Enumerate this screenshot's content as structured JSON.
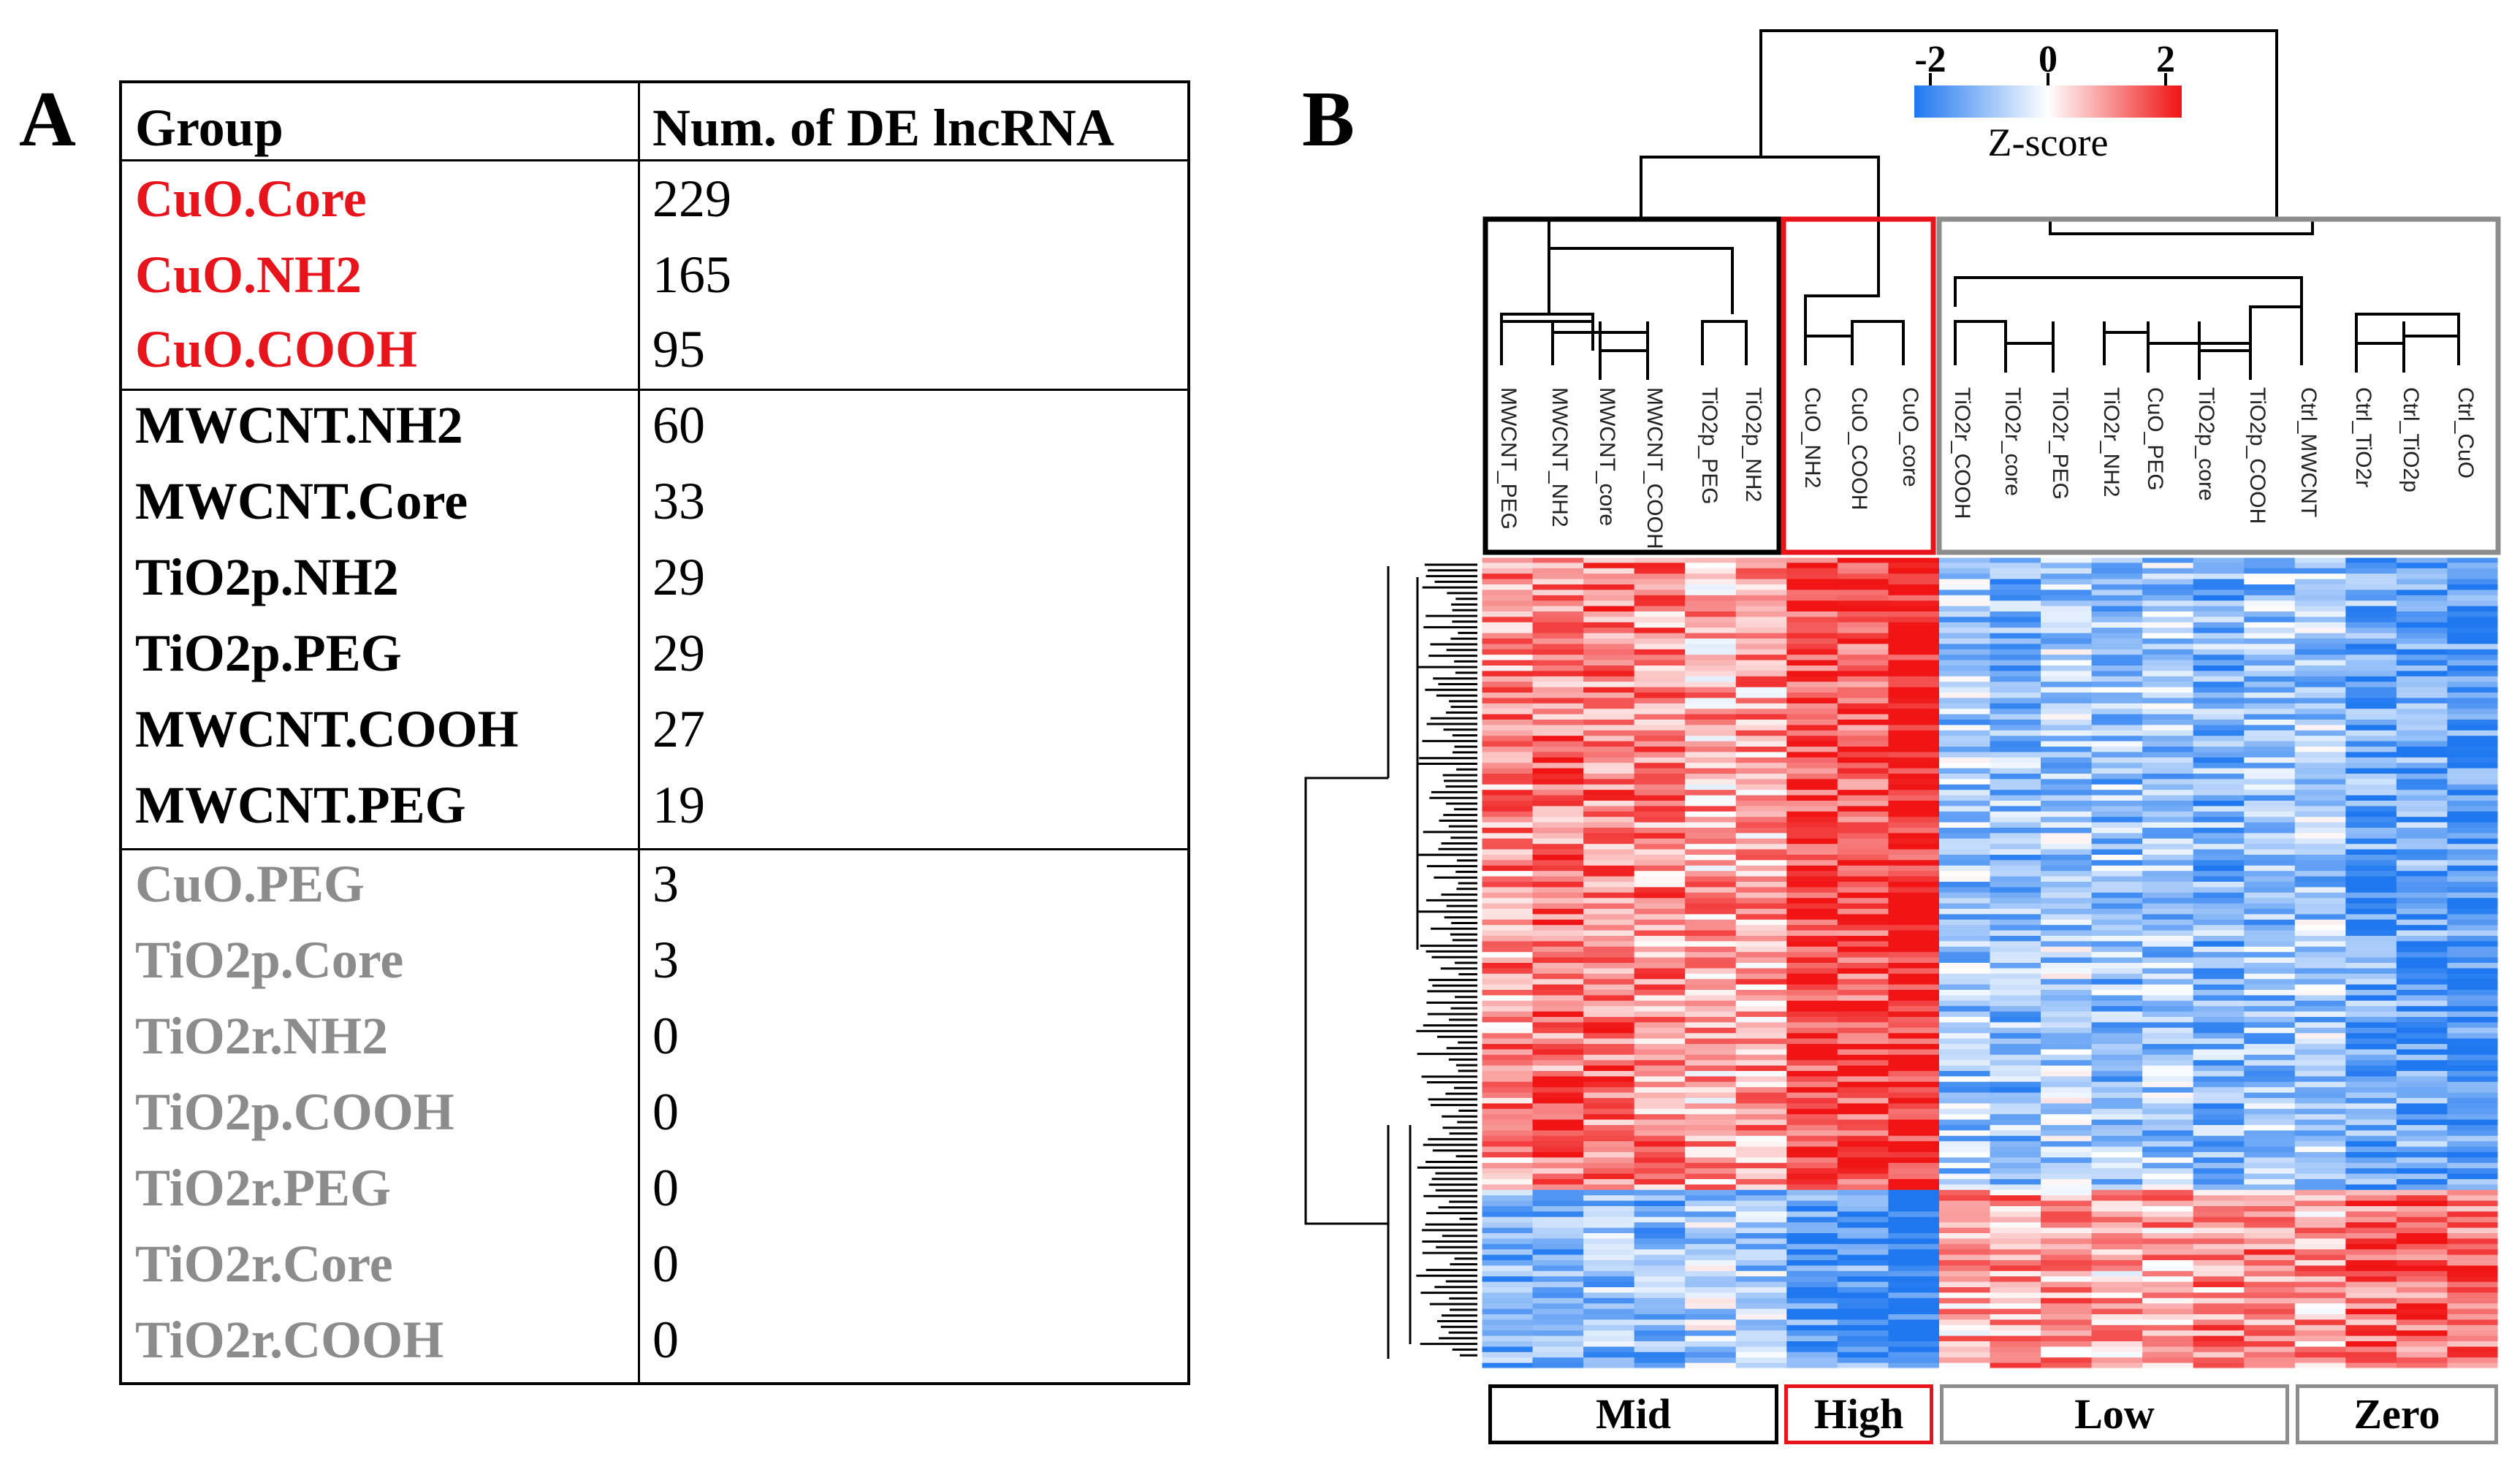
{
  "panel_a": {
    "letter": "A",
    "col_group": "Group",
    "col_count": "Num. of DE lncRNA",
    "rows": [
      {
        "name": "CuO.Core",
        "value": "229",
        "color": "#e8141c"
      },
      {
        "name": "CuO.NH2",
        "value": "165",
        "color": "#e8141c"
      },
      {
        "name": "CuO.COOH",
        "value": "95",
        "color": "#e8141c"
      },
      {
        "name": "MWCNT.NH2",
        "value": "60",
        "color": "#000000"
      },
      {
        "name": "MWCNT.Core",
        "value": "33",
        "color": "#000000"
      },
      {
        "name": "TiO2p.NH2",
        "value": "29",
        "color": "#000000"
      },
      {
        "name": "TiO2p.PEG",
        "value": "29",
        "color": "#000000"
      },
      {
        "name": "MWCNT.COOH",
        "value": "27",
        "color": "#000000"
      },
      {
        "name": "MWCNT.PEG",
        "value": "19",
        "color": "#000000"
      },
      {
        "name": "CuO.PEG",
        "value": "3",
        "color": "#8c8c8c"
      },
      {
        "name": "TiO2p.Core",
        "value": "3",
        "color": "#8c8c8c"
      },
      {
        "name": "TiO2r.NH2",
        "value": "0",
        "color": "#8c8c8c"
      },
      {
        "name": "TiO2p.COOH",
        "value": "0",
        "color": "#8c8c8c"
      },
      {
        "name": "TiO2r.PEG",
        "value": "0",
        "color": "#8c8c8c"
      },
      {
        "name": "TiO2r.Core",
        "value": "0",
        "color": "#8c8c8c"
      },
      {
        "name": "TiO2r.COOH",
        "value": "0",
        "color": "#8c8c8c"
      }
    ]
  },
  "panel_b": {
    "letter": "B",
    "colorbar": {
      "ticks": [
        "-2",
        "0",
        "2"
      ],
      "label": "Z-score",
      "low_color": "#1f78f0",
      "mid_color": "#ffffff",
      "high_color": "#f01414"
    },
    "samples": [
      "MWCNT_PEG",
      "MWCNT_NH2",
      "MWCNT_core",
      "MWCNT_COOH",
      "TiO2p_PEG",
      "TiO2p_NH2",
      "CuO_NH2",
      "CuO_COOH",
      "CuO_core",
      "TiO2r_COOH",
      "TiO2r_core",
      "TiO2r_PEG",
      "TiO2r_NH2",
      "CuO_PEG",
      "TiO2p_core",
      "TiO2p_COOH",
      "Ctrl_MWCNT",
      "Ctrl_TiO2r",
      "Ctrl_TiO2p",
      "Ctrl_CuO"
    ],
    "groups": [
      {
        "label": "Mid",
        "color": "#000000"
      },
      {
        "label": "High",
        "color": "#e8141c"
      },
      {
        "label": "Low",
        "color": "#8c8c8c"
      },
      {
        "label": "Zero",
        "color": "#8c8c8c"
      }
    ]
  }
}
